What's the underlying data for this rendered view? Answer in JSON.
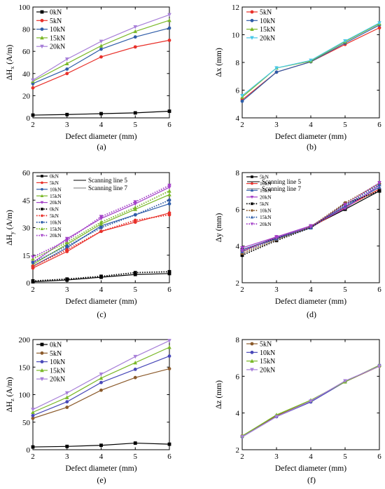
{
  "chart_data": [
    {
      "type": "line",
      "panel_label": "(a)",
      "xlabel": "Defect diameter (mm)",
      "ylabel": "ΔH",
      "ylabel_sub": "x",
      "ylabel_unit": " (A/m)",
      "x": [
        2,
        3,
        4,
        5,
        6
      ],
      "xlim": [
        2,
        6
      ],
      "ylim": [
        0,
        100
      ],
      "xticks": [
        "2",
        "3",
        "4",
        "5",
        "6"
      ],
      "yticks": [
        "0",
        "20",
        "40",
        "60",
        "80",
        "100"
      ],
      "legend_position": "top-left",
      "series": [
        {
          "name": "0kN",
          "color": "#000000",
          "marker": "square",
          "values": [
            2.5,
            3,
            3.8,
            4.5,
            6
          ]
        },
        {
          "name": "5kN",
          "color": "#e8302a",
          "marker": "circle",
          "values": [
            27,
            40,
            55,
            64,
            70
          ]
        },
        {
          "name": "10kN",
          "color": "#2e5ca8",
          "marker": "circle",
          "values": [
            31,
            44,
            62,
            73,
            81
          ]
        },
        {
          "name": "15kN",
          "color": "#7ab828",
          "marker": "triangle",
          "values": [
            33,
            49,
            65,
            78,
            88
          ]
        },
        {
          "name": "20kN",
          "color": "#a77fd8",
          "marker": "tri-down",
          "values": [
            34,
            53,
            69,
            82,
            93
          ]
        }
      ]
    },
    {
      "type": "line",
      "panel_label": "(b)",
      "xlabel": "Defect diameter (mm)",
      "ylabel": "Δx (mm)",
      "x": [
        2,
        3,
        4,
        5,
        6
      ],
      "xlim": [
        2,
        6
      ],
      "ylim": [
        4,
        12
      ],
      "xticks": [
        "2",
        "3",
        "4",
        "5",
        "6"
      ],
      "yticks": [
        "4",
        "6",
        "8",
        "10",
        "12"
      ],
      "legend_position": "top-left",
      "series": [
        {
          "name": "5kN",
          "color": "#e8302a",
          "marker": "circle",
          "values": [
            5.3,
            7.3,
            8.05,
            9.3,
            10.5
          ]
        },
        {
          "name": "10kN",
          "color": "#2e5ca8",
          "marker": "circle",
          "values": [
            5.2,
            7.3,
            8.05,
            9.4,
            10.7
          ]
        },
        {
          "name": "15kN",
          "color": "#7ab828",
          "marker": "triangle",
          "values": [
            5.5,
            7.6,
            8.1,
            9.5,
            10.8
          ]
        },
        {
          "name": "20kN",
          "color": "#48c8e8",
          "marker": "tri-down",
          "values": [
            5.6,
            7.6,
            8.15,
            9.55,
            10.85
          ]
        }
      ]
    },
    {
      "type": "line",
      "panel_label": "(c)",
      "xlabel": "Defect diameter (mm)",
      "ylabel": "ΔH",
      "ylabel_sub": "y",
      "ylabel_unit": " (A/m)",
      "x": [
        2,
        3,
        4,
        5,
        6
      ],
      "xlim": [
        2,
        6
      ],
      "ylim": [
        0,
        60
      ],
      "xticks": [
        "2",
        "3",
        "4",
        "5",
        "6"
      ],
      "yticks": [
        "0",
        "15",
        "30",
        "45",
        "60"
      ],
      "legend_position": "top-left",
      "line_legend": [
        "Scanning line 5",
        "Scanning line 7"
      ],
      "series": [
        {
          "name": "0kN",
          "color": "#000000",
          "marker": "square",
          "dashed": false,
          "values": [
            0.5,
            1.5,
            3,
            4.5,
            5
          ]
        },
        {
          "name": "5kN",
          "color": "#e8302a",
          "marker": "circle",
          "dashed": false,
          "values": [
            8,
            17,
            28,
            33,
            38
          ]
        },
        {
          "name": "10kN",
          "color": "#2e5ca8",
          "marker": "circle",
          "dashed": false,
          "values": [
            9,
            19,
            31,
            37,
            43
          ]
        },
        {
          "name": "15kN",
          "color": "#7ab828",
          "marker": "triangle",
          "dashed": false,
          "values": [
            10,
            21,
            32,
            40,
            48
          ]
        },
        {
          "name": "20kN",
          "color": "#a340c8",
          "marker": "tri-down",
          "dashed": false,
          "values": [
            11,
            24,
            35,
            43,
            52
          ]
        },
        {
          "name": "0kN",
          "color": "#000000",
          "marker": "square",
          "dashed": true,
          "values": [
            1,
            2,
            3.5,
            5.5,
            6
          ]
        },
        {
          "name": "5kN",
          "color": "#e8302a",
          "marker": "circle",
          "dashed": true,
          "values": [
            9,
            18,
            28,
            34,
            37
          ]
        },
        {
          "name": "10kN",
          "color": "#2e5ca8",
          "marker": "circle",
          "dashed": true,
          "values": [
            11,
            20,
            30,
            37,
            45
          ]
        },
        {
          "name": "15kN",
          "color": "#7ab828",
          "marker": "triangle",
          "dashed": true,
          "values": [
            13,
            22,
            33,
            41,
            50
          ]
        },
        {
          "name": "20kN",
          "color": "#a340c8",
          "marker": "tri-down",
          "dashed": true,
          "values": [
            14,
            23,
            36,
            44,
            53
          ]
        }
      ]
    },
    {
      "type": "line",
      "panel_label": "(d)",
      "xlabel": "Defect diameter (mm)",
      "ylabel": "Δy (mm)",
      "x": [
        2,
        3,
        4,
        5,
        6
      ],
      "xlim": [
        2,
        6
      ],
      "ylim": [
        2,
        8
      ],
      "xticks": [
        "2",
        "3",
        "4",
        "5",
        "6"
      ],
      "yticks": [
        "2",
        "4",
        "6",
        "8"
      ],
      "legend_position": "top-left",
      "line_legend": [
        "Scanning line 5",
        "Scanning line 7"
      ],
      "series": [
        {
          "name": "5kN",
          "color": "#000000",
          "marker": "square",
          "dashed": false,
          "values": [
            3.8,
            4.4,
            5.05,
            6.0,
            7.0
          ]
        },
        {
          "name": "10kN",
          "color": "#e8302a",
          "marker": "circle",
          "dashed": false,
          "values": [
            3.7,
            4.5,
            5.0,
            6.1,
            7.1
          ]
        },
        {
          "name": "15kN",
          "color": "#2e5ca8",
          "marker": "triangle",
          "dashed": false,
          "values": [
            3.8,
            4.45,
            5.05,
            6.15,
            7.2
          ]
        },
        {
          "name": "20kN",
          "color": "#a340c8",
          "marker": "tri-down",
          "dashed": false,
          "values": [
            3.9,
            4.5,
            5.1,
            6.05,
            7.3
          ]
        },
        {
          "name": "5kN",
          "color": "#000000",
          "marker": "square",
          "dashed": true,
          "values": [
            3.5,
            4.3,
            5.0,
            6.3,
            7.0
          ]
        },
        {
          "name": "10kN",
          "color": "#8b5a2b",
          "marker": "circle",
          "dashed": true,
          "values": [
            3.6,
            4.35,
            5.05,
            6.35,
            7.4
          ]
        },
        {
          "name": "15kN",
          "color": "#2e5ca8",
          "marker": "triangle",
          "dashed": true,
          "values": [
            3.7,
            4.4,
            5.0,
            6.2,
            7.35
          ]
        },
        {
          "name": "20kN",
          "color": "#a340c8",
          "marker": "tri-down",
          "dashed": true,
          "values": [
            3.75,
            4.45,
            5.05,
            6.25,
            7.45
          ]
        }
      ]
    },
    {
      "type": "line",
      "panel_label": "(e)",
      "xlabel": "Defect diameter (mm)",
      "ylabel": "ΔH",
      "ylabel_sub": "z",
      "ylabel_unit": " (A/m)",
      "x": [
        2,
        3,
        4,
        5,
        6
      ],
      "xlim": [
        2,
        6
      ],
      "ylim": [
        0,
        200
      ],
      "xticks": [
        "2",
        "3",
        "4",
        "5",
        "6"
      ],
      "yticks": [
        "0",
        "50",
        "100",
        "150",
        "200"
      ],
      "legend_position": "top-left",
      "series": [
        {
          "name": "0kN",
          "color": "#000000",
          "marker": "square",
          "values": [
            5,
            6,
            8,
            12,
            10
          ]
        },
        {
          "name": "5kN",
          "color": "#8b5a2b",
          "marker": "circle",
          "values": [
            57,
            77,
            108,
            131,
            147
          ]
        },
        {
          "name": "10kN",
          "color": "#4848b8",
          "marker": "circle",
          "values": [
            62,
            87,
            122,
            146,
            170
          ]
        },
        {
          "name": "15kN",
          "color": "#7ab828",
          "marker": "triangle",
          "values": [
            68,
            95,
            130,
            158,
            186
          ]
        },
        {
          "name": "20kN",
          "color": "#a77fd8",
          "marker": "tri-down",
          "values": [
            73,
            103,
            137,
            169,
            198
          ]
        }
      ]
    },
    {
      "type": "line",
      "panel_label": "(f)",
      "xlabel": "Defect diameter (mm)",
      "ylabel": "Δz (mm)",
      "x": [
        2,
        3,
        4,
        5,
        6
      ],
      "xlim": [
        2,
        6
      ],
      "ylim": [
        2,
        8
      ],
      "xticks": [
        "2",
        "3",
        "4",
        "5",
        "6"
      ],
      "yticks": [
        "2",
        "4",
        "6",
        "8"
      ],
      "legend_position": "top-left",
      "series": [
        {
          "name": "5kN",
          "color": "#8b5a2b",
          "marker": "circle",
          "values": [
            2.75,
            3.85,
            4.65,
            5.7,
            6.55
          ]
        },
        {
          "name": "10kN",
          "color": "#4848b8",
          "marker": "circle",
          "values": [
            2.7,
            3.8,
            4.6,
            5.7,
            6.6
          ]
        },
        {
          "name": "15kN",
          "color": "#7ab828",
          "marker": "triangle",
          "values": [
            2.75,
            3.9,
            4.7,
            5.7,
            6.6
          ]
        },
        {
          "name": "20kN",
          "color": "#a77fd8",
          "marker": "tri-down",
          "values": [
            2.7,
            3.8,
            4.65,
            5.75,
            6.55
          ]
        }
      ]
    }
  ]
}
